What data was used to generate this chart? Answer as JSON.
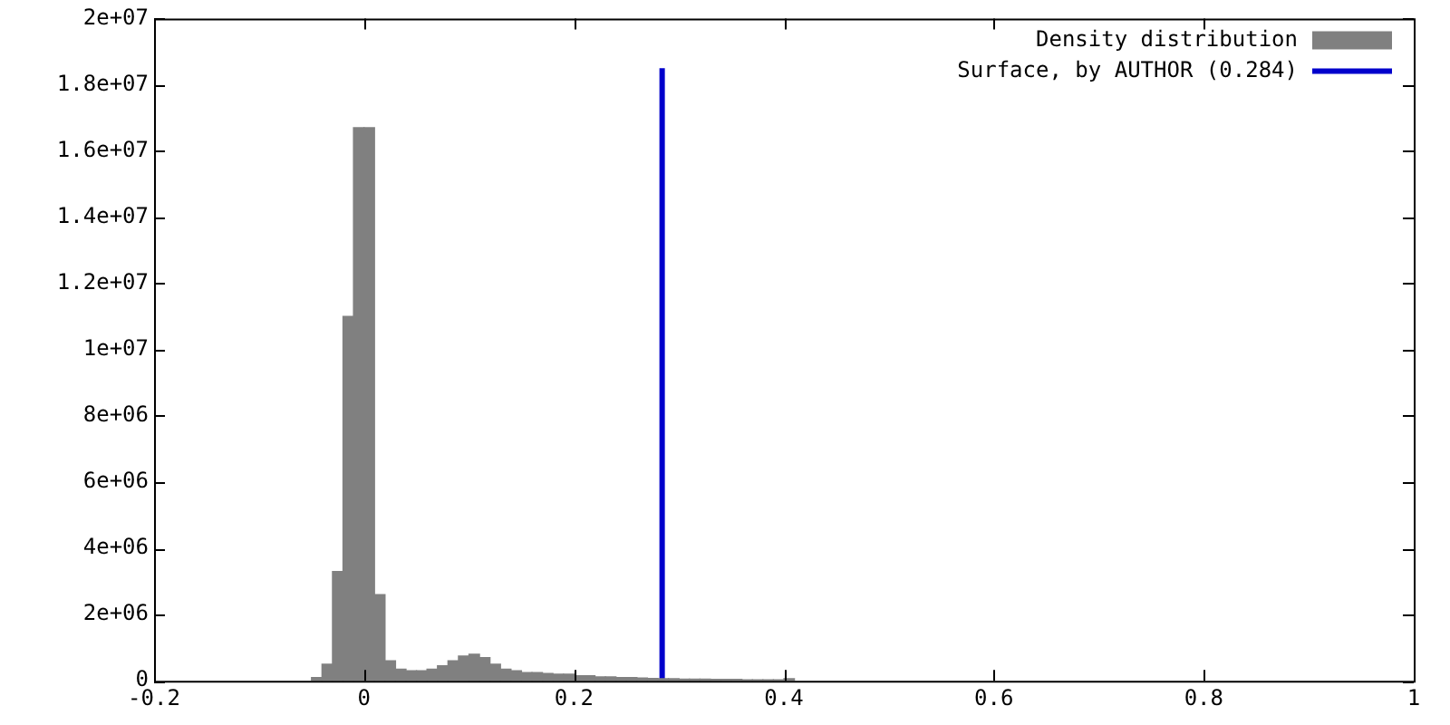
{
  "chart_data": {
    "type": "histogram",
    "bins": [
      -0.05,
      -0.04,
      -0.03,
      -0.02,
      -0.01,
      0,
      0.01,
      0.02,
      0.03,
      0.04,
      0.05,
      0.06,
      0.07,
      0.08,
      0.09,
      0.1,
      0.11,
      0.12,
      0.13,
      0.14,
      0.15,
      0.16,
      0.17,
      0.18,
      0.19,
      0.2,
      0.21,
      0.22,
      0.23,
      0.24,
      0.25,
      0.26,
      0.27,
      0.28,
      0.29,
      0.3,
      0.31,
      0.32,
      0.33,
      0.34,
      0.35,
      0.36,
      0.37,
      0.38,
      0.39,
      0.4,
      0.41
    ],
    "series": [
      {
        "name": "Density distribution",
        "color": "#808080",
        "values": [
          100000,
          500000,
          3300000,
          11000000,
          16700000,
          16700000,
          2600000,
          600000,
          350000,
          300000,
          300000,
          350000,
          450000,
          600000,
          750000,
          800000,
          700000,
          500000,
          350000,
          300000,
          250000,
          250000,
          220000,
          200000,
          200000,
          150000,
          150000,
          120000,
          120000,
          100000,
          100000,
          80000,
          70000,
          60000,
          60000,
          50000,
          50000,
          50000,
          40000,
          40000,
          40000,
          30000,
          30000,
          30000,
          30000,
          60000
        ]
      },
      {
        "name": "Surface, by AUTHOR (0.284)",
        "type": "line",
        "color": "#0000cc",
        "x": [
          0.284,
          0.284
        ],
        "values": [
          0,
          18500000
        ]
      }
    ],
    "xlim": [
      -0.2,
      1
    ],
    "xticks": [
      -0.2,
      0,
      0.2,
      0.4,
      0.6,
      0.8,
      1
    ],
    "ylim": [
      0,
      20000000
    ],
    "yticks": [
      0,
      {
        "value": 2000000,
        "label": "2e+06"
      },
      {
        "value": 4000000,
        "label": "4e+06"
      },
      {
        "value": 6000000,
        "label": "6e+06"
      },
      {
        "value": 8000000,
        "label": "8e+06"
      },
      {
        "value": 10000000,
        "label": "1e+07"
      },
      {
        "value": 12000000,
        "label": "1.2e+07"
      },
      {
        "value": 14000000,
        "label": "1.4e+07"
      },
      {
        "value": 16000000,
        "label": "1.6e+07"
      },
      {
        "value": 18000000,
        "label": "1.8e+07"
      },
      {
        "value": 20000000,
        "label": "2e+07"
      }
    ],
    "grid": false,
    "legend": "top right"
  }
}
